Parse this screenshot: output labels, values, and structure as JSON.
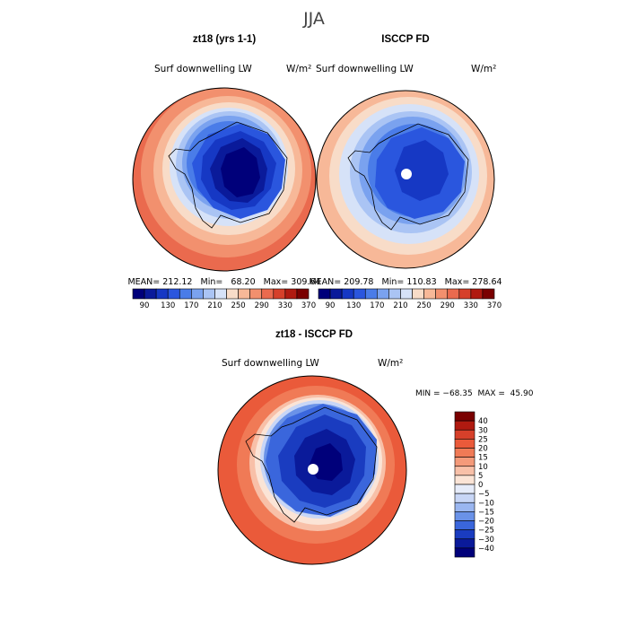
{
  "page_title": "JJA",
  "colors": {
    "ocean_warm": "#ea6a4e",
    "land_outline": "#000000",
    "pole_hole": "#ffffff"
  },
  "panels": [
    {
      "title": "zt18 (yrs 1-1)",
      "variable": "Surf downwelling LW",
      "units": "W/m²",
      "stats_text": "MEAN= 212.12   Min=   68.20   Max= 309.64",
      "colorbar_ticks": [
        "90",
        "130",
        "170",
        "210",
        "250",
        "290",
        "330",
        "370"
      ],
      "colorbar_colors": [
        "#00007a",
        "#0a1a9a",
        "#1638c4",
        "#2a56de",
        "#4a7ce8",
        "#7aa2ef",
        "#aac4f4",
        "#d6e2f8",
        "#f8dcc8",
        "#f7b898",
        "#f2906e",
        "#ea6a4e",
        "#d6402a",
        "#b01a10",
        "#7a0000"
      ]
    },
    {
      "title": "ISCCP FD",
      "variable": "Surf downwelling LW",
      "units": "W/m²",
      "stats_text": "MEAN= 209.78   Min= 110.83   Max= 278.64",
      "colorbar_ticks": [
        "90",
        "130",
        "170",
        "210",
        "250",
        "290",
        "330",
        "370"
      ],
      "colorbar_colors": [
        "#00007a",
        "#0a1a9a",
        "#1638c4",
        "#2a56de",
        "#4a7ce8",
        "#7aa2ef",
        "#aac4f4",
        "#d6e2f8",
        "#f8dcc8",
        "#f7b898",
        "#f2906e",
        "#ea6a4e",
        "#d6402a",
        "#b01a10",
        "#7a0000"
      ]
    },
    {
      "title": "zt18 - ISCCP FD",
      "variable": "Surf downwelling LW",
      "units": "W/m²",
      "stats_text": "MIN = −68.35  MAX =  45.90",
      "colorbar_ticks": [
        "40",
        "30",
        "25",
        "20",
        "15",
        "10",
        "5",
        "0",
        "−5",
        "−10",
        "−15",
        "−20",
        "−25",
        "−30",
        "−40"
      ],
      "colorbar_colors": [
        "#7a0000",
        "#b01a10",
        "#d6402a",
        "#ea5a3a",
        "#f07a56",
        "#f49a7a",
        "#f8c0a8",
        "#fbe4d6",
        "#e6ecfa",
        "#c8d6f6",
        "#9ab6f0",
        "#6a92e8",
        "#3a66dc",
        "#1a3cc0",
        "#0a1a9a",
        "#00007a"
      ]
    }
  ],
  "chart_data": [
    {
      "type": "heatmap",
      "title": "zt18 (yrs 1-1)",
      "variable": "Surf downwelling LW",
      "units": "W/m²",
      "projection": "south-polar stereographic",
      "stats": {
        "mean": 212.12,
        "min": 68.2,
        "max": 309.64
      },
      "colorbar": {
        "orientation": "horizontal",
        "levels": [
          90,
          110,
          130,
          150,
          170,
          190,
          210,
          230,
          250,
          270,
          290,
          310,
          330,
          350,
          370
        ]
      },
      "field": {
        "center_value": 70,
        "outer_value": 310,
        "pole_missing": false
      }
    },
    {
      "type": "heatmap",
      "title": "ISCCP FD",
      "variable": "Surf downwelling LW",
      "units": "W/m²",
      "projection": "south-polar stereographic",
      "stats": {
        "mean": 209.78,
        "min": 110.83,
        "max": 278.64
      },
      "colorbar": {
        "orientation": "horizontal",
        "levels": [
          90,
          110,
          130,
          150,
          170,
          190,
          210,
          230,
          250,
          270,
          290,
          310,
          330,
          350,
          370
        ]
      },
      "field": {
        "center_value": 115,
        "outer_value": 280,
        "pole_missing": true
      }
    },
    {
      "type": "heatmap",
      "title": "zt18 - ISCCP FD",
      "variable": "Surf downwelling LW",
      "units": "W/m²",
      "projection": "south-polar stereographic",
      "stats": {
        "min": -68.35,
        "max": 45.9
      },
      "colorbar": {
        "orientation": "vertical",
        "levels": [
          -40,
          -30,
          -25,
          -20,
          -15,
          -10,
          -5,
          0,
          5,
          10,
          15,
          20,
          25,
          30,
          40
        ]
      },
      "field": {
        "center_value": -40,
        "outer_value": 35,
        "pole_missing": true
      }
    }
  ]
}
